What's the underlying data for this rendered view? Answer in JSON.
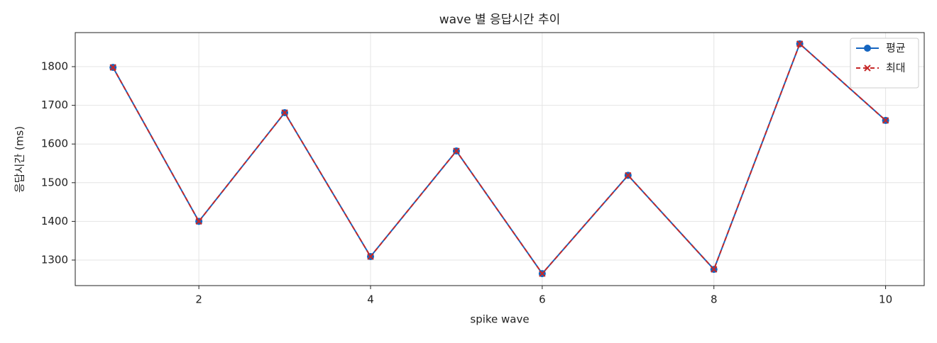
{
  "chart_data": {
    "type": "line",
    "title": "wave 별 응답시간 추이",
    "x_label": "spike wave",
    "y_label": "응답시간 (ms)",
    "x": [
      1,
      2,
      3,
      4,
      5,
      6,
      7,
      8,
      9,
      10
    ],
    "series": [
      {
        "name": "평균",
        "color": "#1565c0",
        "marker": "circle",
        "dash": false,
        "values": [
          1798,
          1400,
          1681,
          1309,
          1582,
          1265,
          1519,
          1276,
          1859,
          1661
        ]
      },
      {
        "name": "최대",
        "color": "#c62828",
        "marker": "x",
        "dash": true,
        "values": [
          1798,
          1400,
          1681,
          1309,
          1582,
          1265,
          1519,
          1276,
          1859,
          1661
        ]
      }
    ],
    "xlim": [
      0.56,
      10.45
    ],
    "xticks": [
      2,
      4,
      6,
      8,
      10
    ],
    "ylim": [
      1234,
      1888
    ],
    "yticks": [
      1300,
      1400,
      1500,
      1600,
      1700,
      1800
    ],
    "grid": true,
    "legend": "upper right"
  }
}
